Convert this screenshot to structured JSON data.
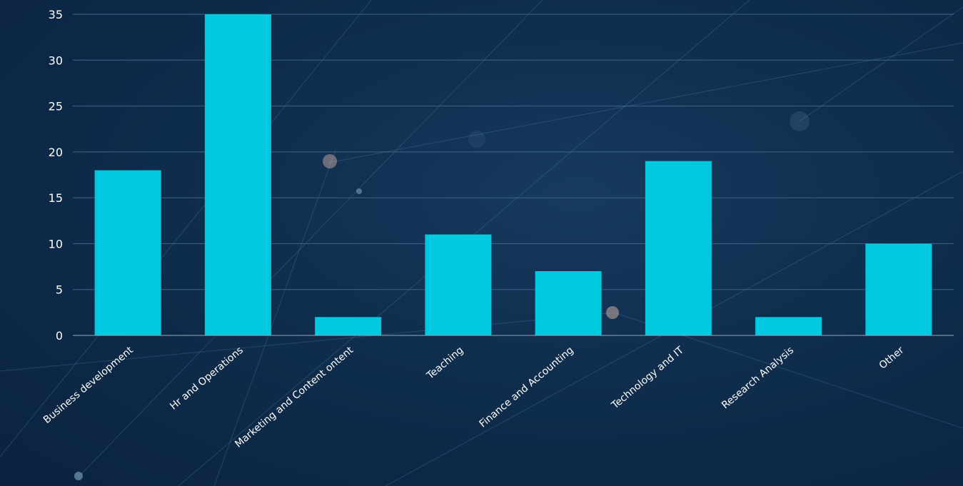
{
  "chart_data": {
    "type": "bar",
    "categories": [
      "Business development",
      "Hr and Operations",
      "Marketing and Content ontent",
      "Teaching",
      "Finance and Accounting",
      "Technology and IT",
      "Research Analysis",
      "Other"
    ],
    "values": [
      18,
      35,
      2,
      11,
      7,
      19,
      2,
      10
    ],
    "title": "",
    "xlabel": "",
    "ylabel": "",
    "ylim": [
      0,
      35
    ],
    "yticks": [
      0,
      5,
      10,
      15,
      20,
      25,
      30,
      35
    ],
    "grid": true,
    "legend": "none",
    "colors": {
      "bar": "#00c8de",
      "grid": "#3f6583",
      "axis": "#8fa9bd",
      "text": "#ffffff"
    }
  }
}
